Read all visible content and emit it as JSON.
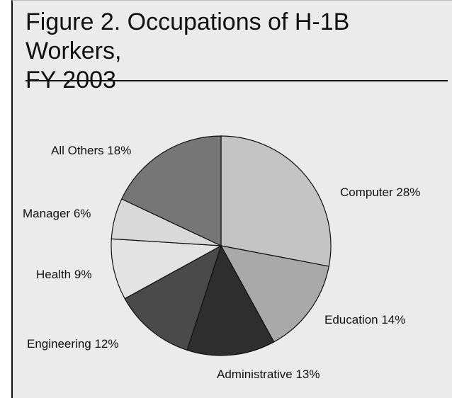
{
  "title": "Figure 2. Occupations of H-1B Workers,\nFY 2003",
  "chart_data": {
    "type": "pie",
    "title": "Figure 2. Occupations of H-1B Workers, FY 2003",
    "slices": [
      {
        "name": "Computer",
        "value": 28,
        "label": "Computer 28%",
        "color": "#c4c4c4"
      },
      {
        "name": "Education",
        "value": 14,
        "label": "Education 14%",
        "color": "#a9a9a9"
      },
      {
        "name": "Administrative",
        "value": 13,
        "label": "Administrative 13%",
        "color": "#2e2e2e"
      },
      {
        "name": "Engineering",
        "value": 12,
        "label": "Engineering 12%",
        "color": "#4a4a4a"
      },
      {
        "name": "Health",
        "value": 9,
        "label": "Health 9%",
        "color": "#e3e3e3"
      },
      {
        "name": "Manager",
        "value": 6,
        "label": "Manager 6%",
        "color": "#d9d9d9"
      },
      {
        "name": "All Others",
        "value": 18,
        "label": "All Others 18%",
        "color": "#767676"
      }
    ]
  }
}
